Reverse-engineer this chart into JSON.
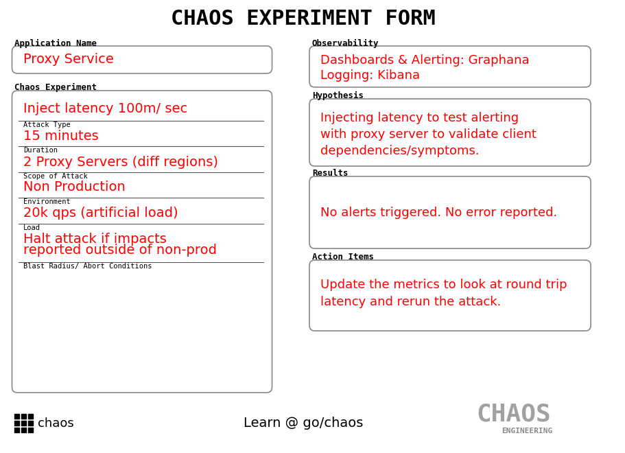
{
  "title": "CHAOS EXPERIMENT FORM",
  "title_fontsize": 22,
  "bg_color": "#ffffff",
  "box_edge_color": "#888888",
  "red_color": "#ff0000",
  "black_color": "#000000",
  "gray_color": "#555555",
  "fields": {
    "app_name_label": "Application Name",
    "app_name_value": "Proxy Service",
    "observability_label": "Observability",
    "observability_line1": "Dashboards & Alerting: Graphana",
    "observability_line2": "Logging: Kibana",
    "chaos_exp_label": "Chaos Experiment",
    "chaos_value1": "Inject latency 100m/ sec",
    "chaos_sublabel1": "Attack Type",
    "chaos_value2": "15 minutes",
    "chaos_sublabel2": "Duration",
    "chaos_value3": "2 Proxy Servers (diff regions)",
    "chaos_sublabel3": "Scope of Attack",
    "chaos_value4": "Non Production",
    "chaos_sublabel4": "Environment",
    "chaos_value5": "20k qps (artificial load)",
    "chaos_sublabel5": "Load",
    "chaos_value6_line1": "Halt attack if impacts",
    "chaos_value6_line2": "reported outside of non-prod",
    "chaos_sublabel6": "Blast Radius/ Abort Conditions",
    "hypothesis_label": "Hypothesis",
    "hypothesis_line1": "Injecting latency to test alerting",
    "hypothesis_line2": "with proxy server to validate client",
    "hypothesis_line3": "dependencies/symptoms.",
    "results_label": "Results",
    "results_value": "No alerts triggered. No error reported.",
    "action_label": "Action Items",
    "action_line1": "Update the metrics to look at round trip",
    "action_line2": "latency and rerun the attack.",
    "footer_center": "Learn @ go/chaos",
    "footer_chaos_big": "CHAOS",
    "footer_chaos_small": "ENGINEERING"
  }
}
